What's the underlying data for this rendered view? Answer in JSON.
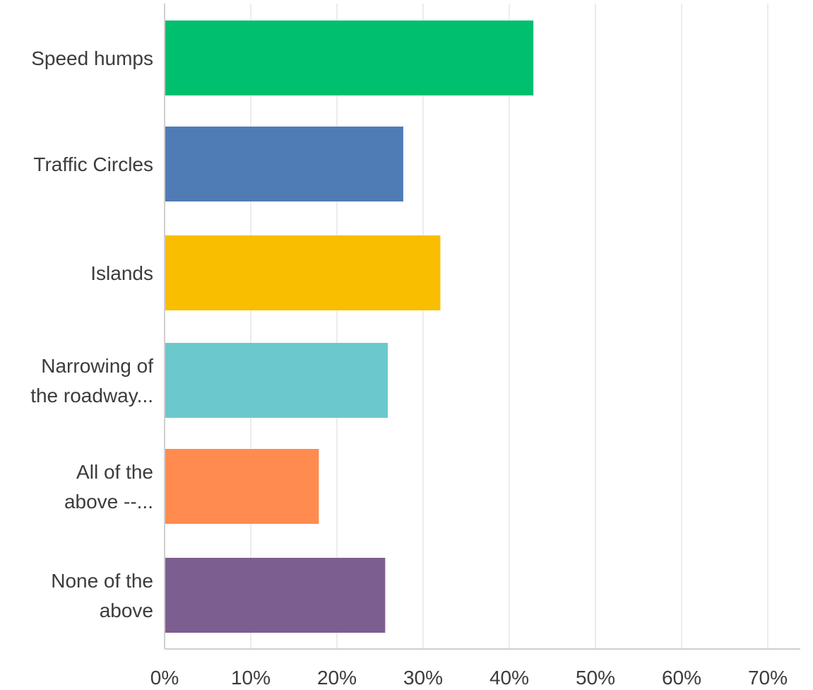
{
  "chart_data": {
    "type": "bar",
    "orientation": "horizontal",
    "title": "",
    "xlabel": "",
    "ylabel": "",
    "categories": [
      [
        "Speed humps"
      ],
      [
        "Traffic Circles"
      ],
      [
        "Islands"
      ],
      [
        "Narrowing of",
        "the roadway..."
      ],
      [
        "All of the",
        "above --..."
      ],
      [
        "None of the",
        "above"
      ]
    ],
    "values": [
      42.8,
      27.7,
      32.0,
      25.9,
      17.9,
      25.6
    ],
    "colors": [
      "#00bf6f",
      "#507cb6",
      "#f9be00",
      "#6bc8cd",
      "#ff8b4f",
      "#7d5e90"
    ],
    "xlim": [
      0,
      70
    ],
    "xticks": [
      0,
      10,
      20,
      30,
      40,
      50,
      60,
      70
    ],
    "xtick_labels": [
      "0%",
      "10%",
      "20%",
      "30%",
      "40%",
      "50%",
      "60%",
      "70%"
    ],
    "grid": "vertical",
    "legend": "none"
  }
}
